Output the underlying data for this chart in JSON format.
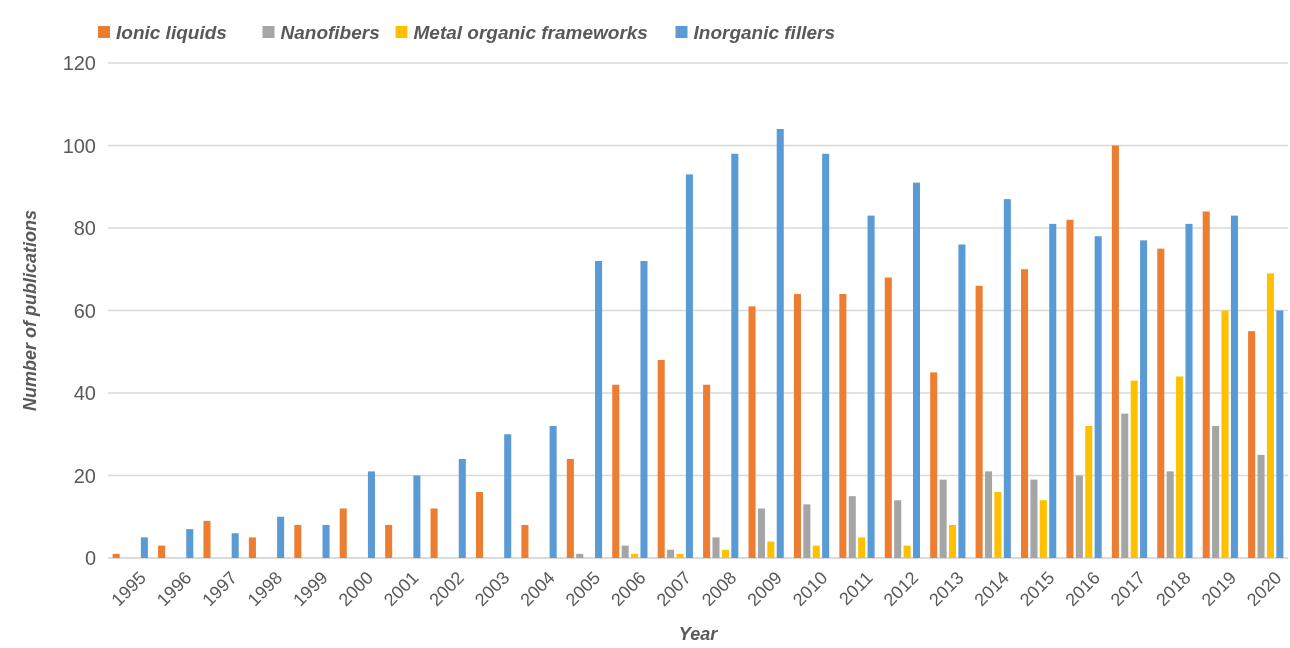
{
  "chart_data": {
    "type": "bar",
    "xlabel": "Year",
    "ylabel": "Number of publications",
    "categories": [
      "1995",
      "1996",
      "1997",
      "1998",
      "1999",
      "2000",
      "2001",
      "2002",
      "2003",
      "2004",
      "2005",
      "2006",
      "2007",
      "2008",
      "2009",
      "2010",
      "2011",
      "2012",
      "2013",
      "2014",
      "2015",
      "2016",
      "2017",
      "2018",
      "2019",
      "2020"
    ],
    "series": [
      {
        "name": "Ionic liquids",
        "color": "#ed7d31",
        "values": [
          1,
          3,
          9,
          5,
          8,
          12,
          8,
          12,
          16,
          8,
          24,
          42,
          48,
          42,
          61,
          64,
          64,
          68,
          45,
          66,
          70,
          82,
          100,
          75,
          84,
          55
        ]
      },
      {
        "name": "Nanofibers",
        "color": "#a5a5a5",
        "values": [
          0,
          0,
          0,
          0,
          0,
          0,
          0,
          0,
          0,
          0,
          1,
          3,
          2,
          5,
          12,
          13,
          15,
          14,
          19,
          21,
          19,
          20,
          35,
          21,
          32,
          25
        ]
      },
      {
        "name": "Metal organic frameworks",
        "color": "#ffc000",
        "values": [
          0,
          0,
          0,
          0,
          0,
          0,
          0,
          0,
          0,
          0,
          0,
          1,
          1,
          2,
          4,
          3,
          5,
          3,
          8,
          16,
          14,
          32,
          43,
          44,
          60,
          69
        ]
      },
      {
        "name": "Inorganic fillers",
        "color": "#5b9bd5",
        "values": [
          5,
          7,
          6,
          10,
          8,
          21,
          20,
          24,
          30,
          32,
          72,
          72,
          93,
          98,
          104,
          98,
          83,
          91,
          76,
          87,
          81,
          78,
          77,
          81,
          83,
          60
        ]
      }
    ],
    "ylim": [
      0,
      120
    ],
    "yticks": [
      0,
      20,
      40,
      60,
      80,
      100,
      120
    ],
    "grid": "y",
    "legend": "top left"
  }
}
